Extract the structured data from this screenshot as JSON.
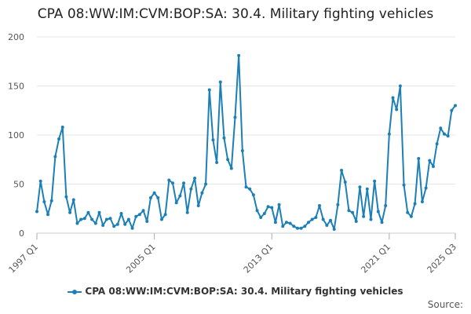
{
  "chart_data": {
    "type": "line",
    "title": "CPA 08:WW:IM:CVM:BOP:SA: 30.4. Military fighting vehicles",
    "xlabel": "",
    "ylabel": "",
    "ylim": [
      0,
      200
    ],
    "yticks": [
      0,
      50,
      100,
      150,
      200
    ],
    "xticks": [
      "1997 Q1",
      "2005 Q1",
      "2013 Q1",
      "2021 Q1",
      "2025 Q3"
    ],
    "series": [
      {
        "name": "CPA 08:WW:IM:CVM:BOP:SA: 30.4. Military fighting vehicles",
        "color": "#1c7fb6",
        "values": [
          22,
          53,
          32,
          19,
          33,
          78,
          96,
          108,
          37,
          21,
          34,
          10,
          14,
          15,
          21,
          14,
          10,
          21,
          8,
          14,
          15,
          7,
          9,
          20,
          9,
          14,
          5,
          17,
          19,
          23,
          12,
          36,
          41,
          36,
          14,
          19,
          54,
          51,
          31,
          38,
          51,
          21,
          45,
          56,
          28,
          41,
          50,
          146,
          95,
          72,
          154,
          97,
          75,
          66,
          118,
          181,
          84,
          47,
          45,
          39,
          23,
          16,
          20,
          27,
          26,
          11,
          29,
          7,
          11,
          10,
          7,
          5,
          5,
          7,
          11,
          14,
          16,
          28,
          14,
          8,
          13,
          4,
          29,
          64,
          52,
          23,
          21,
          12,
          47,
          17,
          45,
          14,
          53,
          22,
          11,
          28,
          101,
          138,
          126,
          150,
          49,
          21,
          17,
          30,
          76,
          32,
          46,
          74,
          68,
          91,
          107,
          101,
          99,
          125,
          130
        ]
      }
    ],
    "legend": "CPA 08:WW:IM:CVM:BOP:SA: 30.4. Military fighting vehicles",
    "source_label": "Source:"
  }
}
